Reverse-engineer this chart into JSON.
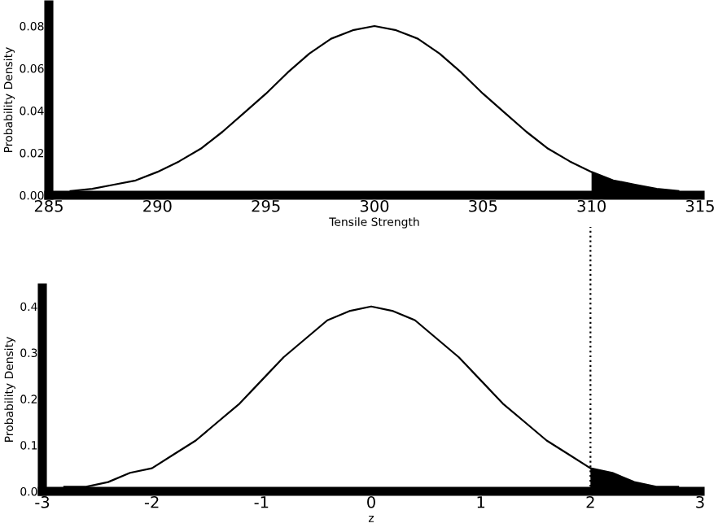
{
  "chart_data": [
    {
      "type": "line",
      "xlabel": "Tensile Strength",
      "ylabel": "Probability Density",
      "xlim": [
        285,
        315
      ],
      "xticks": [
        285,
        290,
        295,
        300,
        305,
        310,
        315
      ],
      "ylim": [
        0,
        0.09
      ],
      "yticks": [
        {
          "value": 0,
          "label": "0.00"
        },
        {
          "value": 0.02,
          "label": "0.02"
        },
        {
          "value": 0.04,
          "label": "0.04"
        },
        {
          "value": 0.06,
          "label": "0.06"
        },
        {
          "value": 0.08,
          "label": "0.08"
        }
      ],
      "grid": false,
      "legend": false,
      "marker": "none",
      "line_style": "solid",
      "series": [
        {
          "color": "#000000",
          "x": [
            286,
            287,
            288,
            289,
            290,
            291,
            292,
            293,
            294,
            295,
            296,
            297,
            298,
            299,
            300,
            301,
            302,
            303,
            304,
            305,
            306,
            307,
            308,
            309,
            310,
            311,
            312,
            313,
            314
          ],
          "values": [
            0.002,
            0.003,
            0.005,
            0.007,
            0.011,
            0.016,
            0.022,
            0.03,
            0.039,
            0.048,
            0.058,
            0.067,
            0.074,
            0.078,
            0.08,
            0.078,
            0.074,
            0.067,
            0.058,
            0.048,
            0.039,
            0.03,
            0.022,
            0.016,
            0.011,
            0.007,
            0.005,
            0.003,
            0.002
          ]
        },
        {
          "type": "area",
          "color": "#000000",
          "x": [
            310,
            311,
            312,
            313,
            314
          ],
          "values": [
            0.011,
            0.007,
            0.005,
            0.003,
            0.002
          ]
        }
      ]
    },
    {
      "type": "line",
      "xlabel": "z",
      "ylabel": "Probability Density",
      "xlim": [
        -3,
        3
      ],
      "xticks": [
        -3,
        -2,
        -1,
        0,
        1,
        2,
        3
      ],
      "ylim": [
        0,
        0.44
      ],
      "yticks": [
        {
          "value": 0,
          "label": "0.0"
        },
        0.1,
        0.2,
        0.3,
        0.4
      ],
      "grid": false,
      "legend": false,
      "marker": "none",
      "line_style": "solid",
      "ref_lines": [
        {
          "axis": "x",
          "value": 2,
          "color": "#000000",
          "line_style": "dotted"
        }
      ],
      "series": [
        {
          "color": "#000000",
          "x": [
            -2.8,
            -2.6,
            -2.4,
            -2.2,
            -2.0,
            -1.8,
            -1.6,
            -1.4,
            -1.2,
            -1.0,
            -0.8,
            -0.6,
            -0.4,
            -0.2,
            0,
            0.2,
            0.4,
            0.6,
            0.8,
            1.0,
            1.2,
            1.4,
            1.6,
            1.8,
            2.0,
            2.2,
            2.4,
            2.6,
            2.8
          ],
          "values": [
            0.01,
            0.01,
            0.02,
            0.04,
            0.05,
            0.08,
            0.11,
            0.15,
            0.19,
            0.24,
            0.29,
            0.33,
            0.37,
            0.39,
            0.4,
            0.39,
            0.37,
            0.33,
            0.29,
            0.24,
            0.19,
            0.15,
            0.11,
            0.08,
            0.05,
            0.04,
            0.02,
            0.01,
            0.01
          ]
        },
        {
          "type": "area",
          "color": "#000000",
          "x": [
            2.0,
            2.2,
            2.4,
            2.6,
            2.8
          ],
          "values": [
            0.05,
            0.04,
            0.02,
            0.01,
            0.01
          ]
        }
      ]
    }
  ]
}
